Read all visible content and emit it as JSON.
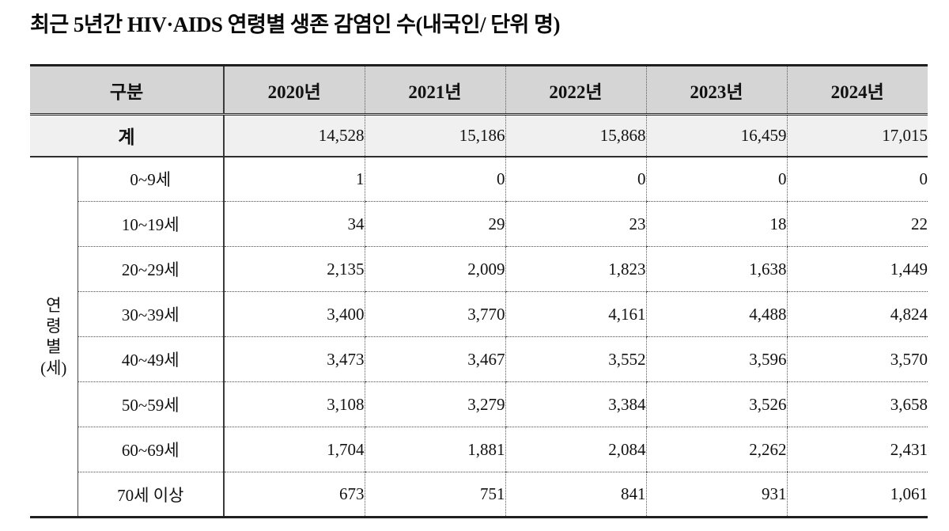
{
  "page": {
    "title": "최근 5년간 HIV·AIDS 연령별 생존 감염인 수(내국인/ 단위 명)"
  },
  "table": {
    "columns": [
      "구분",
      "2020년",
      "2021년",
      "2022년",
      "2023년",
      "2024년"
    ],
    "total": {
      "label": "계",
      "values": [
        "14,528",
        "15,186",
        "15,868",
        "16,459",
        "17,015"
      ]
    },
    "group_label": "연\n령\n별\n(세)",
    "rows": [
      {
        "label": "0~9세",
        "values": [
          "1",
          "0",
          "0",
          "0",
          "0"
        ]
      },
      {
        "label": "10~19세",
        "values": [
          "34",
          "29",
          "23",
          "18",
          "22"
        ]
      },
      {
        "label": "20~29세",
        "values": [
          "2,135",
          "2,009",
          "1,823",
          "1,638",
          "1,449"
        ]
      },
      {
        "label": "30~39세",
        "values": [
          "3,400",
          "3,770",
          "4,161",
          "4,488",
          "4,824"
        ]
      },
      {
        "label": "40~49세",
        "values": [
          "3,473",
          "3,467",
          "3,552",
          "3,596",
          "3,570"
        ]
      },
      {
        "label": "50~59세",
        "values": [
          "3,108",
          "3,279",
          "3,384",
          "3,526",
          "3,658"
        ]
      },
      {
        "label": "60~69세",
        "values": [
          "1,704",
          "1,881",
          "2,084",
          "2,262",
          "2,431"
        ]
      },
      {
        "label": "70세 이상",
        "values": [
          "673",
          "751",
          "841",
          "931",
          "1,061"
        ]
      }
    ]
  },
  "colors": {
    "header_bg": "#d5d5d5",
    "total_row_bg": "#f0f0f0",
    "border_dark": "#1f1f1f",
    "text": "#111111"
  },
  "chart_data": {
    "type": "table",
    "title": "최근 5년간 HIV·AIDS 연령별 생존 감염인 수(내국인/ 단위 명)",
    "columns": [
      "2020년",
      "2021년",
      "2022년",
      "2023년",
      "2024년"
    ],
    "row_group_label": "연령별(세)",
    "total": {
      "label": "계",
      "values": [
        14528,
        15186,
        15868,
        16459,
        17015
      ]
    },
    "rows": [
      {
        "label": "0~9세",
        "values": [
          1,
          0,
          0,
          0,
          0
        ]
      },
      {
        "label": "10~19세",
        "values": [
          34,
          29,
          23,
          18,
          22
        ]
      },
      {
        "label": "20~29세",
        "values": [
          2135,
          2009,
          1823,
          1638,
          1449
        ]
      },
      {
        "label": "30~39세",
        "values": [
          3400,
          3770,
          4161,
          4488,
          4824
        ]
      },
      {
        "label": "40~49세",
        "values": [
          3473,
          3467,
          3552,
          3596,
          3570
        ]
      },
      {
        "label": "50~59세",
        "values": [
          3108,
          3279,
          3384,
          3526,
          3658
        ]
      },
      {
        "label": "60~69세",
        "values": [
          1704,
          1881,
          2084,
          2262,
          2431
        ]
      },
      {
        "label": "70세 이상",
        "values": [
          673,
          751,
          841,
          931,
          1061
        ]
      }
    ]
  }
}
